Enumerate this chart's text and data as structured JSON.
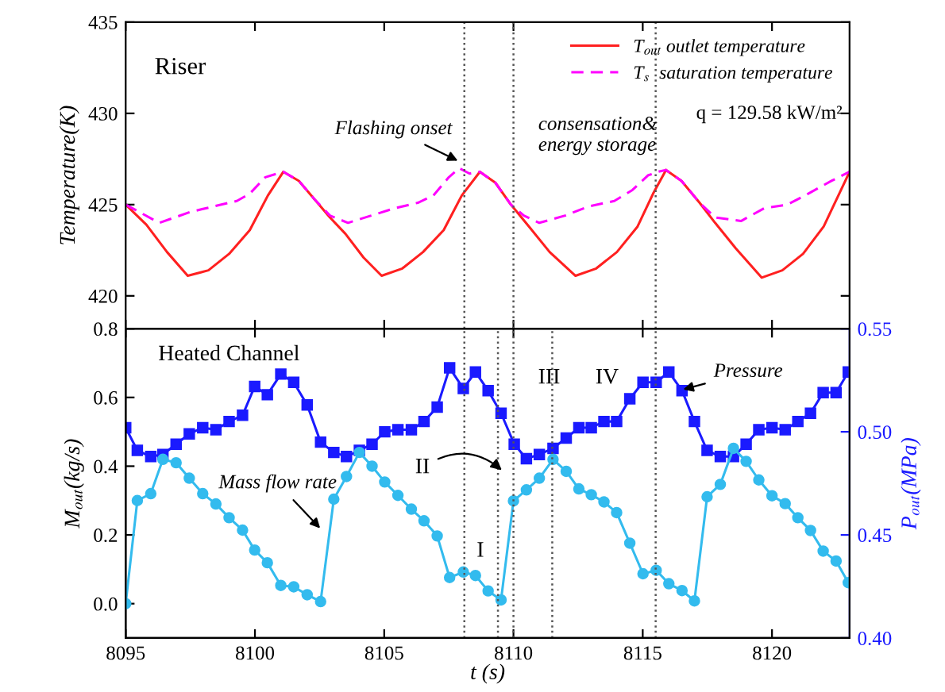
{
  "chart_data": [
    {
      "type": "line",
      "ylabel": "Temperature(K)",
      "xlim": [
        8095,
        8123
      ],
      "ylim": [
        418.2,
        435
      ],
      "yticks": [
        420,
        425,
        430,
        435
      ],
      "xticks": [
        8095,
        8100,
        8105,
        8110,
        8115,
        8120
      ],
      "tick_labels": "y",
      "legend": "top right",
      "grid": false,
      "annotations": [
        "Riser",
        "q = 129.58 kW/m²",
        "consensation&\nenergy storage",
        {
          "text": "Flashing onset",
          "x": 8108.0,
          "y": 427.3
        }
      ],
      "ref_lines": [
        {
          "axis": "x",
          "value": 8108.1,
          "color": "#555555",
          "line_style": "dotted"
        },
        {
          "axis": "x",
          "value": 8110.0,
          "color": "#555555",
          "line_style": "dotted"
        },
        {
          "axis": "x",
          "value": 8115.5,
          "color": "#555555",
          "line_style": "dotted"
        }
      ],
      "series": [
        {
          "name": "T$_{out}$ outlet temperature",
          "color": "#ff2020",
          "line_style": "solid",
          "x": [
            8095,
            8095.8,
            8096.6,
            8097.4,
            8098.2,
            8099.0,
            8099.8,
            8100.5,
            8101.1,
            8101.7,
            8102.3,
            8102.9,
            8103.5,
            8104.2,
            8104.9,
            8105.7,
            8106.5,
            8107.3,
            8108.0,
            8108.7,
            8109.3,
            8109.9,
            8110.6,
            8111.4,
            8112.4,
            8113.2,
            8114.0,
            8114.8,
            8115.4,
            8115.9,
            8116.5,
            8117.2,
            8117.8,
            8118.6,
            8119.6,
            8120.4,
            8121.2,
            8122.0,
            8122.6,
            8123.0
          ],
          "values": [
            425.0,
            423.9,
            422.4,
            421.1,
            421.4,
            422.3,
            423.6,
            425.5,
            426.8,
            426.3,
            425.3,
            424.3,
            423.4,
            422.1,
            421.1,
            421.5,
            422.4,
            423.6,
            425.5,
            426.8,
            426.2,
            425.0,
            423.8,
            422.4,
            421.1,
            421.5,
            422.4,
            423.8,
            425.6,
            426.9,
            426.3,
            425.1,
            424.0,
            422.6,
            421.0,
            421.4,
            422.3,
            423.8,
            425.6,
            426.8
          ]
        },
        {
          "name": "T$_{s}$  saturation temperature",
          "color": "#ff00ff",
          "line_style": "dashed",
          "x": [
            8095,
            8096.3,
            8097.5,
            8098.4,
            8099.3,
            8099.8,
            8100.4,
            8101.1,
            8101.7,
            8102.3,
            8102.9,
            8103.6,
            8104.5,
            8105.4,
            8106.3,
            8106.9,
            8107.5,
            8107.9,
            8108.3,
            8108.7,
            8109.3,
            8109.9,
            8110.4,
            8111.0,
            8112.0,
            8112.9,
            8113.9,
            8114.6,
            8115.2,
            8115.6,
            8115.9,
            8116.5,
            8117.2,
            8117.8,
            8118.8,
            8119.7,
            8120.6,
            8121.4,
            8122.3,
            8123.0
          ],
          "values": [
            425.0,
            424.0,
            424.6,
            424.9,
            425.2,
            425.6,
            426.5,
            426.8,
            426.3,
            425.3,
            424.4,
            424.0,
            424.4,
            424.8,
            425.1,
            425.5,
            426.5,
            427.0,
            426.7,
            426.8,
            426.2,
            425.0,
            424.4,
            424.0,
            424.4,
            424.9,
            425.2,
            425.8,
            426.6,
            426.8,
            426.9,
            426.3,
            425.1,
            424.3,
            424.1,
            424.8,
            425.0,
            425.6,
            426.3,
            426.8
          ]
        }
      ]
    },
    {
      "type": "line",
      "xlabel": "t (s)",
      "ylabel": "M$_{out}$(kg/s)",
      "y2label": "P$_{out}$(MPa)",
      "xlim": [
        8095,
        8123
      ],
      "ylim": [
        -0.1,
        0.8
      ],
      "y2lim": [
        0.4,
        0.55
      ],
      "xticks": [
        8095,
        8100,
        8105,
        8110,
        8115,
        8120
      ],
      "yticks": [
        {
          "value": 0.0,
          "label": "0.0"
        },
        0.2,
        0.4,
        0.6,
        0.8
      ],
      "y2ticks": [
        {
          "value": 0.4,
          "label": "0.40"
        },
        {
          "value": 0.45,
          "label": "0.45"
        },
        {
          "value": 0.5,
          "label": "0.50"
        },
        {
          "value": 0.55,
          "label": "0.55"
        }
      ],
      "grid": false,
      "legend": false,
      "annotations": [
        "Heated Channel",
        "I",
        "III",
        "IV",
        {
          "text": "Mass flow rate",
          "x": 8102.64,
          "y": 0.21
        },
        {
          "text": "Pressure",
          "x": 8116.4,
          "y": 0.62
        },
        {
          "text": "II",
          "x": 8109.68,
          "y": 0.38
        }
      ],
      "ref_lines": [
        {
          "axis": "x",
          "value": 8108.1,
          "color": "#555555",
          "line_style": "dotted"
        },
        {
          "axis": "x",
          "value": 8109.4,
          "color": "#555555",
          "line_style": "dotted"
        },
        {
          "axis": "x",
          "value": 8110.0,
          "color": "#555555",
          "line_style": "dotted"
        },
        {
          "axis": "x",
          "value": 8111.5,
          "color": "#555555",
          "line_style": "dotted"
        },
        {
          "axis": "x",
          "value": 8115.5,
          "color": "#555555",
          "line_style": "dotted"
        }
      ],
      "series": [
        {
          "color": "#33bbee",
          "marker": "circle",
          "line_style": "solid",
          "x": [
            8095.0,
            8095.45,
            8095.97,
            8096.44,
            8096.95,
            8097.46,
            8097.98,
            8098.49,
            8099.0,
            8099.52,
            8099.99,
            8100.48,
            8101.0,
            8101.5,
            8102.02,
            8102.54,
            8103.05,
            8103.54,
            8104.04,
            8104.53,
            8105.02,
            8105.53,
            8106.05,
            8106.54,
            8107.05,
            8107.53,
            8108.06,
            8108.53,
            8109.02,
            8109.52,
            8110.0,
            8110.5,
            8111.0,
            8111.53,
            8112.04,
            8112.53,
            8113.01,
            8113.5,
            8113.99,
            8114.5,
            8115.01,
            8115.52,
            8116.01,
            8116.52,
            8117.0,
            8117.49,
            8118.0,
            8118.51,
            8119.0,
            8119.49,
            8120.0,
            8120.51,
            8121.0,
            8121.49,
            8121.98,
            8122.48,
            8122.95
          ],
          "values": [
            0.0,
            0.3,
            0.32,
            0.42,
            0.41,
            0.365,
            0.32,
            0.29,
            0.25,
            0.214,
            0.156,
            0.119,
            0.053,
            0.049,
            0.026,
            0.006,
            0.304,
            0.37,
            0.44,
            0.4,
            0.354,
            0.315,
            0.275,
            0.241,
            0.197,
            0.076,
            0.092,
            0.082,
            0.037,
            0.011,
            0.299,
            0.331,
            0.365,
            0.42,
            0.385,
            0.334,
            0.317,
            0.296,
            0.265,
            0.176,
            0.087,
            0.097,
            0.058,
            0.038,
            0.008,
            0.311,
            0.347,
            0.452,
            0.414,
            0.36,
            0.314,
            0.291,
            0.25,
            0.213,
            0.153,
            0.124,
            0.061
          ]
        },
        {
          "color": "#1a1aff",
          "marker": "square",
          "line_style": "solid",
          "axis": "y2",
          "x": [
            8095.0,
            8095.45,
            8095.97,
            8096.44,
            8096.95,
            8097.46,
            8097.98,
            8098.49,
            8099.0,
            8099.52,
            8099.99,
            8100.48,
            8101.0,
            8101.5,
            8102.02,
            8102.54,
            8103.05,
            8103.54,
            8104.04,
            8104.53,
            8105.02,
            8105.53,
            8106.05,
            8106.54,
            8107.05,
            8107.53,
            8108.06,
            8108.53,
            8109.02,
            8109.52,
            8110.03,
            8110.5,
            8111.0,
            8111.53,
            8112.04,
            8112.53,
            8113.01,
            8113.5,
            8113.99,
            8114.5,
            8115.01,
            8115.52,
            8116.01,
            8116.52,
            8117.0,
            8117.49,
            8118.0,
            8118.51,
            8119.0,
            8119.49,
            8120.0,
            8120.51,
            8121.0,
            8121.49,
            8121.98,
            8122.48,
            8122.95
          ],
          "values": [
            0.502,
            0.491,
            0.488,
            0.489,
            0.494,
            0.499,
            0.502,
            0.501,
            0.505,
            0.508,
            0.522,
            0.518,
            0.528,
            0.524,
            0.513,
            0.495,
            0.49,
            0.488,
            0.491,
            0.494,
            0.5,
            0.501,
            0.501,
            0.505,
            0.512,
            0.531,
            0.521,
            0.529,
            0.52,
            0.509,
            0.494,
            0.487,
            0.489,
            0.492,
            0.497,
            0.502,
            0.502,
            0.505,
            0.505,
            0.516,
            0.524,
            0.524,
            0.529,
            0.52,
            0.505,
            0.491,
            0.488,
            0.488,
            0.494,
            0.501,
            0.502,
            0.501,
            0.505,
            0.509,
            0.519,
            0.519,
            0.529
          ]
        }
      ]
    }
  ]
}
